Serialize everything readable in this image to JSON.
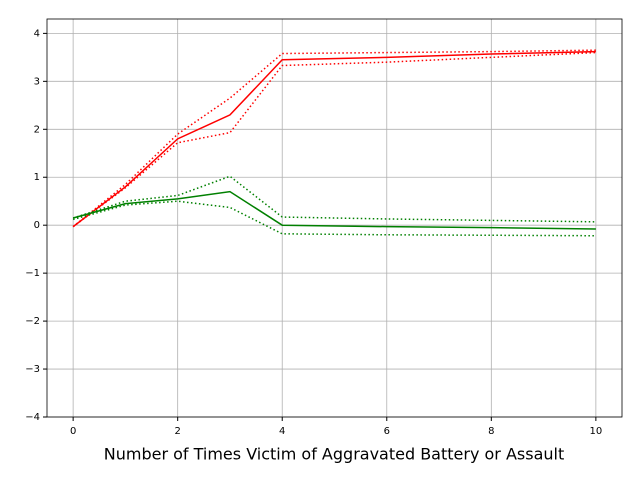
{
  "chart_data": {
    "type": "line",
    "x_label": "Number of Times Victim of Aggravated Battery or Assault",
    "x": [
      0,
      1,
      2,
      3,
      4,
      6,
      8,
      10
    ],
    "series": [
      {
        "color": "#ff0000",
        "style": "solid",
        "values": [
          -0.03,
          0.8,
          1.8,
          2.3,
          3.45,
          3.5,
          3.57,
          3.62
        ]
      },
      {
        "color": "#ff0000",
        "style": "dotted",
        "values": [
          -0.03,
          0.85,
          1.9,
          2.65,
          3.58,
          3.6,
          3.62,
          3.65
        ]
      },
      {
        "color": "#ff0000",
        "style": "dotted",
        "values": [
          -0.03,
          0.78,
          1.72,
          1.93,
          3.33,
          3.4,
          3.5,
          3.6
        ]
      },
      {
        "color": "#008000",
        "style": "solid",
        "values": [
          0.15,
          0.45,
          0.55,
          0.7,
          0,
          -0.03,
          -0.05,
          -0.08
        ]
      },
      {
        "color": "#008000",
        "style": "dotted",
        "values": [
          0.15,
          0.5,
          0.62,
          1.02,
          0.17,
          0.13,
          0.1,
          0.07
        ]
      },
      {
        "color": "#008000",
        "style": "dotted",
        "values": [
          0.12,
          0.42,
          0.5,
          0.37,
          -0.18,
          -0.2,
          -0.21,
          -0.22
        ]
      }
    ],
    "xlim": [
      -0.5,
      10.5
    ],
    "xticks": [
      0,
      2,
      4,
      6,
      8,
      10
    ],
    "ylim": [
      -4,
      4.3
    ],
    "yticks": [
      {
        "value": -4,
        "label": "−4"
      },
      {
        "value": -3,
        "label": "−3"
      },
      {
        "value": -2,
        "label": "−2"
      },
      {
        "value": -1,
        "label": "−1"
      },
      0,
      1,
      2,
      3,
      4
    ],
    "grid": true
  }
}
